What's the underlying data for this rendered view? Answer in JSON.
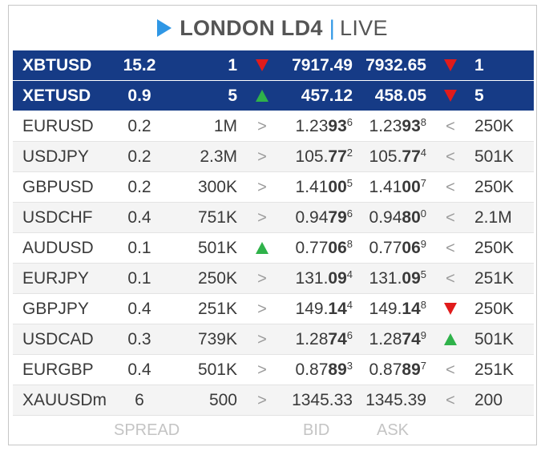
{
  "header": {
    "title": "LONDON LD4",
    "separator": "|",
    "status": "LIVE",
    "accent_color": "#2f97e5"
  },
  "columns": {
    "spread": "SPREAD",
    "bid": "BID",
    "ask": "ASK"
  },
  "rows": [
    {
      "symbol": "XBTUSD",
      "spread": "15.2",
      "bid_size": "1",
      "bid_dir": "down",
      "bid": "7917.49",
      "ask": "7932.65",
      "ask_dir": "down",
      "ask_size": "1",
      "highlight": true
    },
    {
      "symbol": "XETUSD",
      "spread": "0.9",
      "bid_size": "5",
      "bid_dir": "up",
      "bid": "457.12",
      "ask": "458.05",
      "ask_dir": "down",
      "ask_size": "5",
      "highlight": true
    },
    {
      "symbol": "EURUSD",
      "spread": "0.2",
      "bid_size": "1M",
      "bid_dir": ">",
      "bid_pre": "1.23",
      "bid_big": "93",
      "bid_sup": "6",
      "ask_pre": "1.23",
      "ask_big": "93",
      "ask_sup": "8",
      "ask_dir": "<",
      "ask_size": "250K"
    },
    {
      "symbol": "USDJPY",
      "spread": "0.2",
      "bid_size": "2.3M",
      "bid_dir": ">",
      "bid_pre": "105.",
      "bid_big": "77",
      "bid_sup": "2",
      "ask_pre": "105.",
      "ask_big": "77",
      "ask_sup": "4",
      "ask_dir": "<",
      "ask_size": "501K"
    },
    {
      "symbol": "GBPUSD",
      "spread": "0.2",
      "bid_size": "300K",
      "bid_dir": ">",
      "bid_pre": "1.41",
      "bid_big": "00",
      "bid_sup": "5",
      "ask_pre": "1.41",
      "ask_big": "00",
      "ask_sup": "7",
      "ask_dir": "<",
      "ask_size": "250K"
    },
    {
      "symbol": "USDCHF",
      "spread": "0.4",
      "bid_size": "751K",
      "bid_dir": ">",
      "bid_pre": "0.94",
      "bid_big": "79",
      "bid_sup": "6",
      "ask_pre": "0.94",
      "ask_big": "80",
      "ask_sup": "0",
      "ask_dir": "<",
      "ask_size": "2.1M"
    },
    {
      "symbol": "AUDUSD",
      "spread": "0.1",
      "bid_size": "501K",
      "bid_dir": "up",
      "bid_pre": "0.77",
      "bid_big": "06",
      "bid_sup": "8",
      "ask_pre": "0.77",
      "ask_big": "06",
      "ask_sup": "9",
      "ask_dir": "<",
      "ask_size": "250K"
    },
    {
      "symbol": "EURJPY",
      "spread": "0.1",
      "bid_size": "250K",
      "bid_dir": ">",
      "bid_pre": "131.",
      "bid_big": "09",
      "bid_sup": "4",
      "ask_pre": "131.",
      "ask_big": "09",
      "ask_sup": "5",
      "ask_dir": "<",
      "ask_size": "251K"
    },
    {
      "symbol": "GBPJPY",
      "spread": "0.4",
      "bid_size": "251K",
      "bid_dir": ">",
      "bid_pre": "149.",
      "bid_big": "14",
      "bid_sup": "4",
      "ask_pre": "149.",
      "ask_big": "14",
      "ask_sup": "8",
      "ask_dir": "down",
      "ask_size": "250K"
    },
    {
      "symbol": "USDCAD",
      "spread": "0.3",
      "bid_size": "739K",
      "bid_dir": ">",
      "bid_pre": "1.28",
      "bid_big": "74",
      "bid_sup": "6",
      "ask_pre": "1.28",
      "ask_big": "74",
      "ask_sup": "9",
      "ask_dir": "up",
      "ask_size": "501K"
    },
    {
      "symbol": "EURGBP",
      "spread": "0.4",
      "bid_size": "501K",
      "bid_dir": ">",
      "bid_pre": "0.87",
      "bid_big": "89",
      "bid_sup": "3",
      "ask_pre": "0.87",
      "ask_big": "89",
      "ask_sup": "7",
      "ask_dir": "<",
      "ask_size": "251K"
    },
    {
      "symbol": "XAUUSDm",
      "spread": "6",
      "bid_size": "500",
      "bid_dir": ">",
      "bid": "1345.33",
      "ask": "1345.39",
      "ask_dir": "<",
      "ask_size": "200"
    }
  ]
}
